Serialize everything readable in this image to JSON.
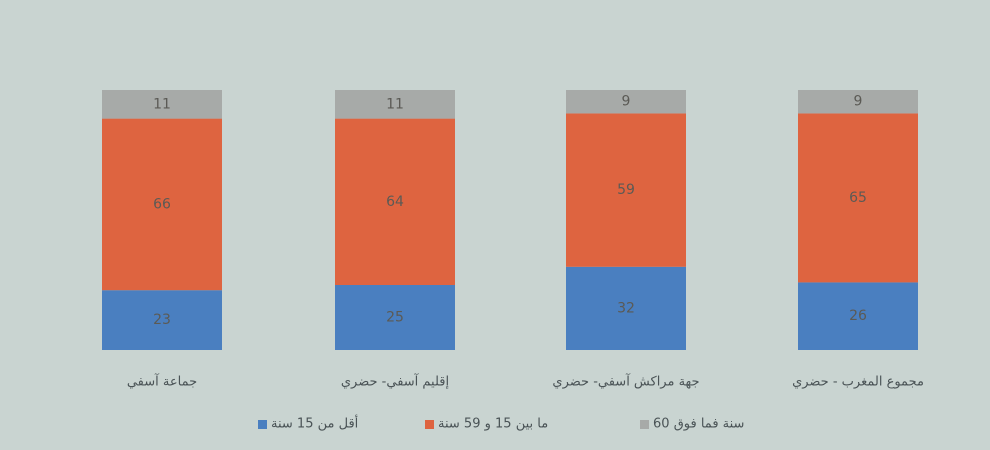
{
  "chart_data": {
    "type": "stacked_bar",
    "categories": [
      "جماعة آسفي",
      "إقليم آسفي- حضري",
      "جهة مراكش آسفي- حضري",
      "مجموع المغرب - حضري"
    ],
    "series": [
      {
        "name": "أقل من 15 سنة",
        "color": "#4a7fc0",
        "values": [
          23,
          25,
          32,
          26
        ]
      },
      {
        "name": "ما بين 15 و 59 سنة",
        "color": "#de6440",
        "values": [
          66,
          64,
          59,
          65
        ]
      },
      {
        "name": "60 سنة فما فوق",
        "color": "#a7aaa8",
        "values": [
          11,
          11,
          9,
          9
        ]
      }
    ]
  }
}
